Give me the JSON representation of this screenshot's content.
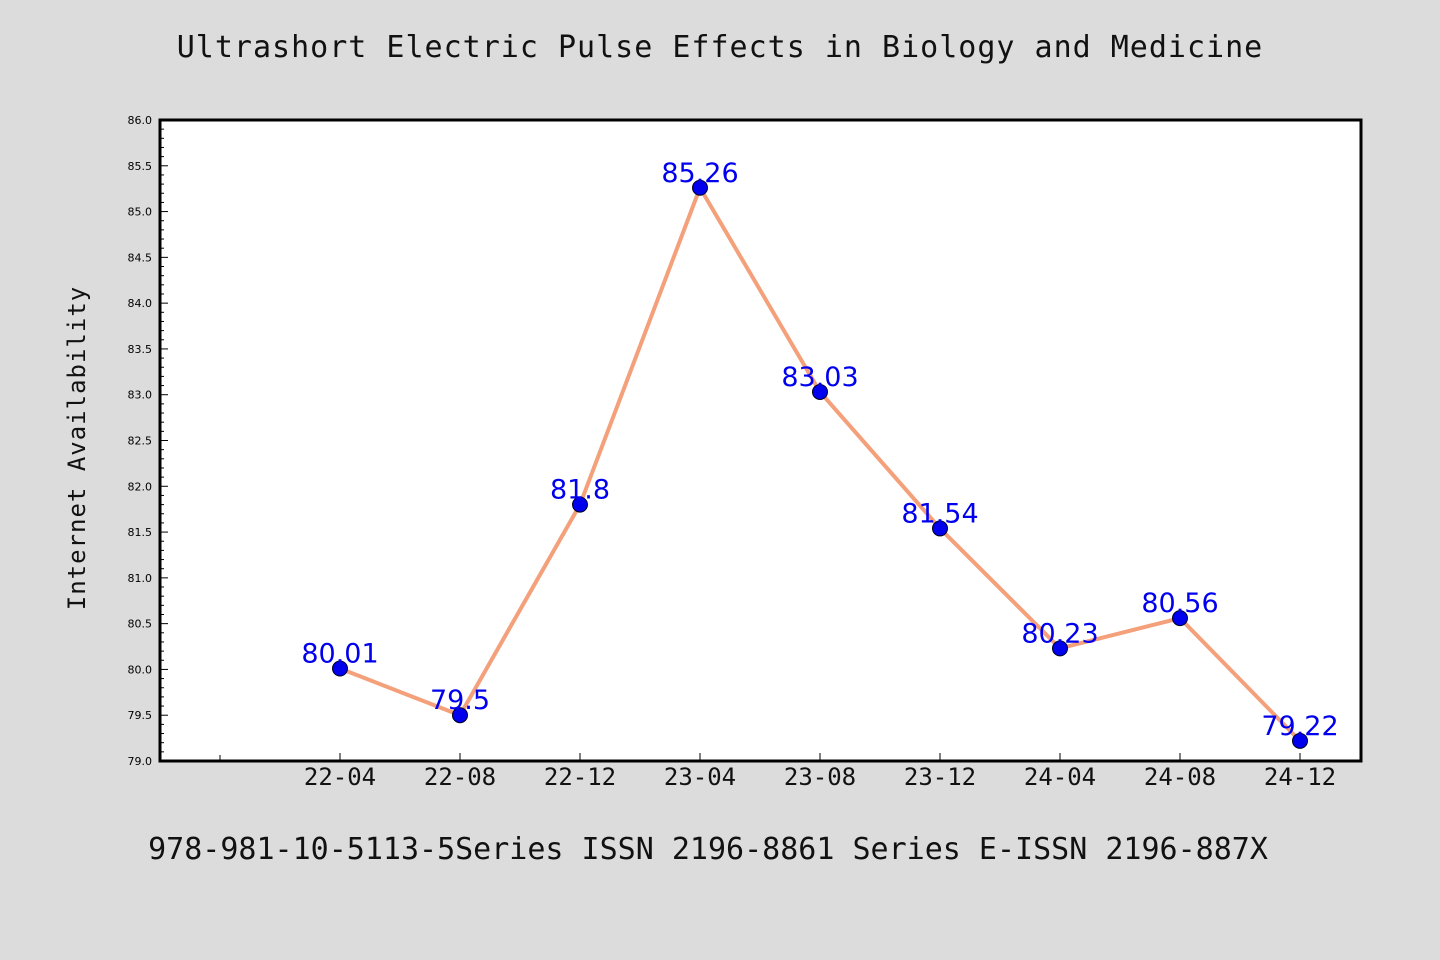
{
  "chart_data": {
    "type": "line",
    "title": "Ultrashort Electric Pulse Effects in Biology and Medicine",
    "ylabel": "Internet Availability",
    "xlabel": "",
    "categories": [
      "22-04",
      "22-08",
      "22-12",
      "23-04",
      "23-08",
      "23-12",
      "24-04",
      "24-08",
      "24-12"
    ],
    "series": [
      {
        "values": [
          80.01,
          79.5,
          81.8,
          85.26,
          83.03,
          81.54,
          80.23,
          80.56,
          79.22
        ]
      }
    ],
    "data_labels": [
      "80.01",
      "79.5",
      "81.8",
      "85.26",
      "83.03",
      "81.54",
      "80.23",
      "80.56",
      "79.22"
    ],
    "ylim": [
      79.0,
      86.0
    ],
    "y_ticks": [
      "79.0",
      "79.5",
      "80.0",
      "80.5",
      "81.0",
      "81.5",
      "82.0",
      "82.5",
      "83.0",
      "83.5",
      "84.0",
      "84.5",
      "85.0",
      "85.5",
      "86.0"
    ],
    "grid": false,
    "colors": {
      "line": "#f4a07a",
      "marker": "#0000ee",
      "label": "#0000ee",
      "plot_bg": "#ffffff",
      "figure_bg": "#dcdcdc"
    }
  },
  "footer": "978-981-10-5113-5Series ISSN 2196-8861 Series E-ISSN 2196-887X"
}
